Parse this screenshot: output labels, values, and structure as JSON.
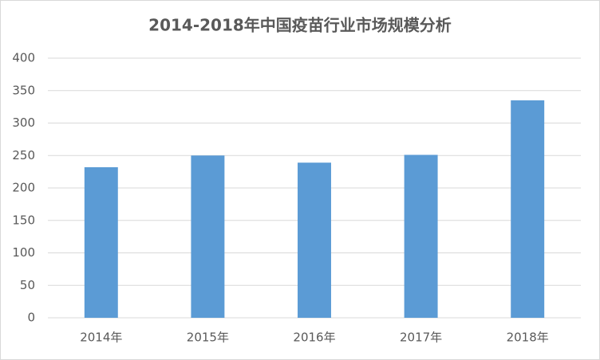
{
  "chart_data": {
    "type": "bar",
    "title": "2014-2018年中国疫苗行业市场规模分析",
    "categories": [
      "2014年",
      "2015年",
      "2016年",
      "2017年",
      "2018年"
    ],
    "values": [
      232,
      250,
      239,
      251,
      335
    ],
    "color": "#5b9bd5",
    "ylim": [
      0,
      400
    ],
    "yticks": [
      0,
      50,
      100,
      150,
      200,
      250,
      300,
      350,
      400
    ],
    "grid": true
  }
}
